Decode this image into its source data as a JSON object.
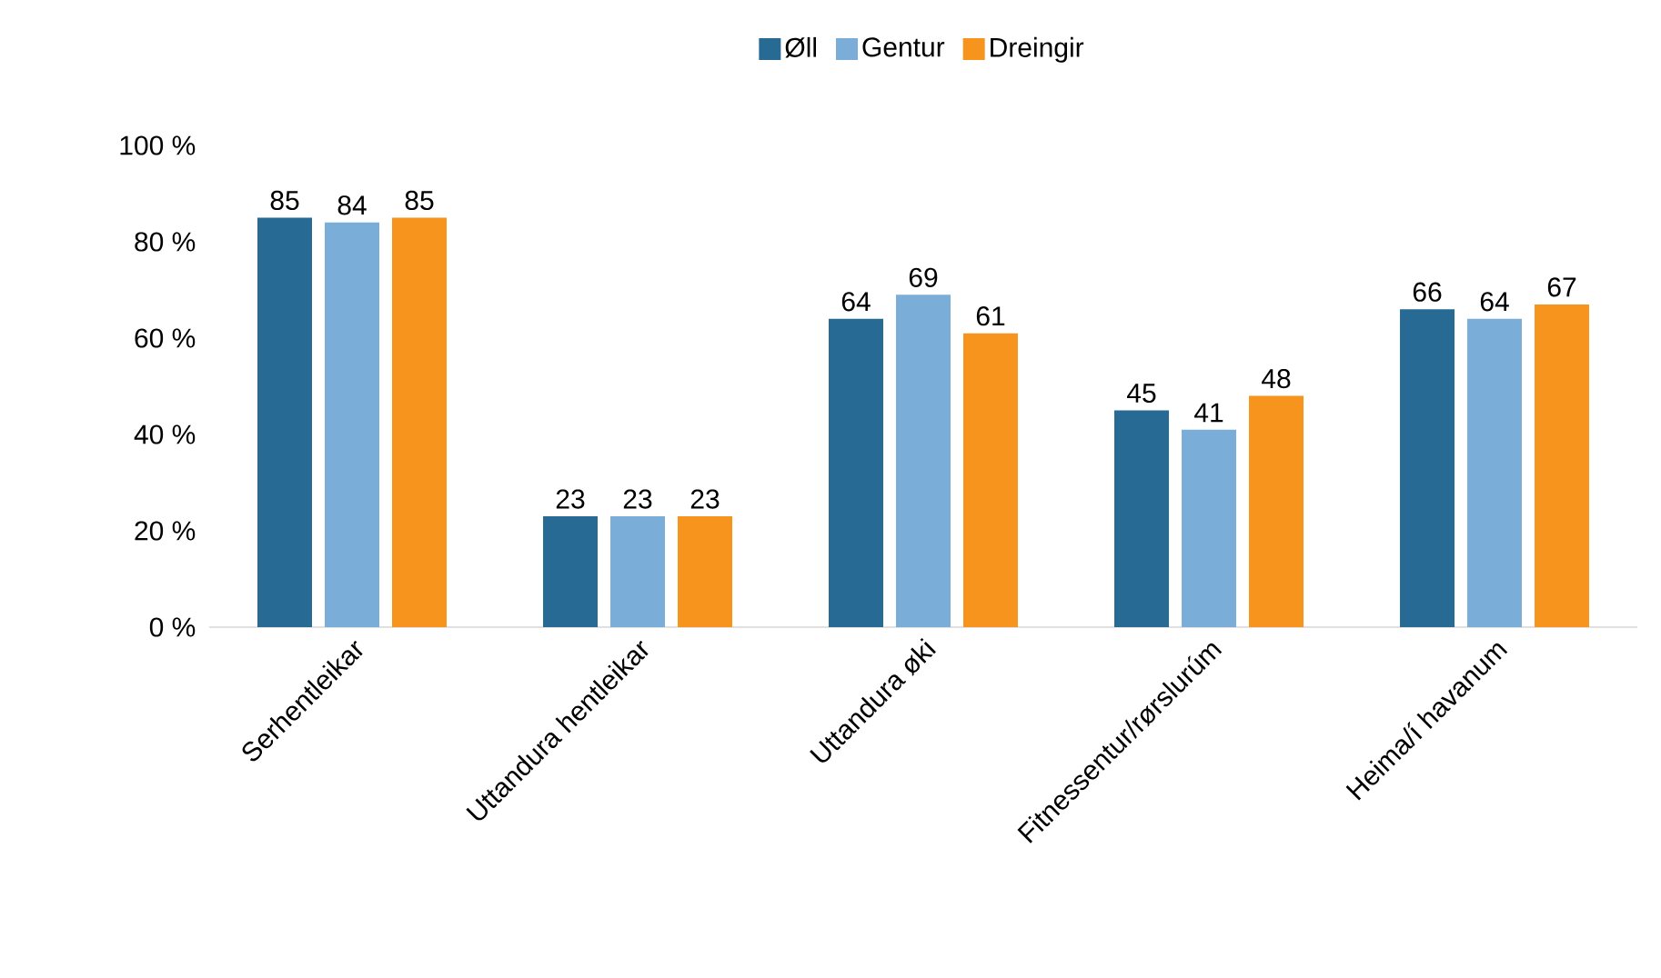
{
  "chart_data": {
    "type": "bar",
    "categories": [
      "Serhentleikar",
      "Uttandura hentleikar",
      "Uttandura øki",
      "Fitnessentur/rørslurúm",
      "Heima/í havanum"
    ],
    "series": [
      {
        "name": "Øll",
        "color": "#276b95",
        "values": [
          85,
          23,
          64,
          45,
          66
        ]
      },
      {
        "name": "Gentur",
        "color": "#7aaed8",
        "values": [
          84,
          23,
          69,
          41,
          64
        ]
      },
      {
        "name": "Dreingir",
        "color": "#f7941d",
        "values": [
          85,
          23,
          61,
          48,
          67
        ]
      }
    ],
    "ylim": [
      0,
      100
    ],
    "yticks": [
      {
        "value": 0,
        "label": "0 %"
      },
      {
        "value": 20,
        "label": "20 %"
      },
      {
        "value": 40,
        "label": "40 %"
      },
      {
        "value": 60,
        "label": "60 %"
      },
      {
        "value": 80,
        "label": "80 %"
      },
      {
        "value": 100,
        "label": "100 %"
      }
    ],
    "data_labels": true,
    "grid": false,
    "legend": "top"
  }
}
